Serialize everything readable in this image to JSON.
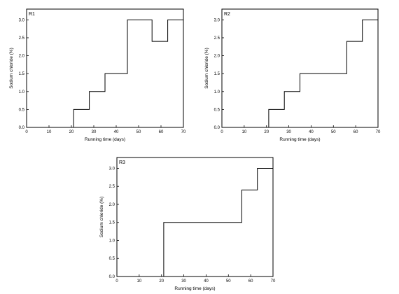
{
  "chart_data": [
    {
      "type": "line",
      "step": true,
      "panel_label": "R1",
      "xlabel": "Running time (days)",
      "ylabel": "Sodium chloride (%)",
      "xlim": [
        0,
        70
      ],
      "ylim": [
        0.0,
        3.3
      ],
      "x_ticks": [
        "0",
        "10",
        "20",
        "30",
        "40",
        "50",
        "60",
        "70"
      ],
      "y_ticks": [
        "0.0",
        "0.5",
        "1.0",
        "1.5",
        "2.0",
        "2.5",
        "3.0"
      ],
      "x": [
        0,
        21,
        21,
        28,
        28,
        35,
        35,
        45,
        45,
        56,
        56,
        63,
        63,
        70
      ],
      "y": [
        0.0,
        0.0,
        0.5,
        0.5,
        1.0,
        1.0,
        1.5,
        1.5,
        3.0,
        3.0,
        2.4,
        2.4,
        3.0,
        3.0
      ]
    },
    {
      "type": "line",
      "step": true,
      "panel_label": "R2",
      "xlabel": "Running time (days)",
      "ylabel": "Sodium chloride (%)",
      "xlim": [
        0,
        70
      ],
      "ylim": [
        0.0,
        3.3
      ],
      "x_ticks": [
        "0",
        "10",
        "20",
        "30",
        "40",
        "50",
        "60",
        "70"
      ],
      "y_ticks": [
        "0.0",
        "0.5",
        "1.0",
        "1.5",
        "2.0",
        "2.5",
        "3.0"
      ],
      "x": [
        0,
        21,
        21,
        28,
        28,
        35,
        35,
        56,
        56,
        63,
        63,
        70
      ],
      "y": [
        0.0,
        0.0,
        0.5,
        0.5,
        1.0,
        1.0,
        1.5,
        1.5,
        2.4,
        2.4,
        3.0,
        3.0
      ]
    },
    {
      "type": "line",
      "step": true,
      "panel_label": "R3",
      "xlabel": "Running time (days)",
      "ylabel": "Sodium chloride (%)",
      "xlim": [
        0,
        70
      ],
      "ylim": [
        0.0,
        3.3
      ],
      "x_ticks": [
        "0",
        "10",
        "20",
        "30",
        "40",
        "50",
        "60",
        "70"
      ],
      "y_ticks": [
        "0.0",
        "0.5",
        "1.0",
        "1.5",
        "2.0",
        "2.5",
        "3.0"
      ],
      "x": [
        0,
        21,
        21,
        56,
        56,
        63,
        63,
        70
      ],
      "y": [
        0.0,
        0.0,
        1.5,
        1.5,
        2.4,
        2.4,
        3.0,
        3.0
      ]
    }
  ]
}
